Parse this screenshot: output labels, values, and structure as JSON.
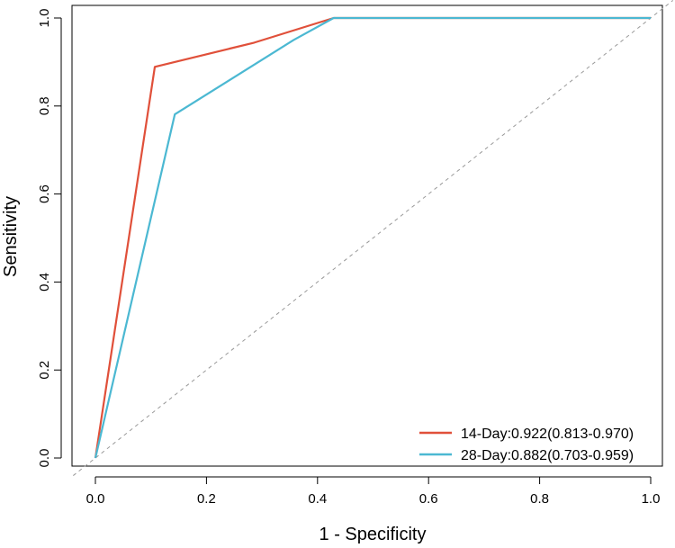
{
  "chart_data": {
    "type": "line",
    "title": "",
    "xlabel": "1 - Specificity",
    "ylabel": "Sensitivity",
    "xlim": [
      0,
      1
    ],
    "ylim": [
      0,
      1
    ],
    "x_ticks": [
      "0.0",
      "0.2",
      "0.4",
      "0.6",
      "0.8",
      "1.0"
    ],
    "y_ticks": [
      "0.0",
      "0.2",
      "0.4",
      "0.6",
      "0.8",
      "1.0"
    ],
    "grid": false,
    "legend_position": "bottom-right",
    "reference_line": {
      "name": "diagonal",
      "x": [
        0,
        1
      ],
      "y": [
        0,
        1
      ],
      "style": "dashed",
      "color": "#999999"
    },
    "series": [
      {
        "name": "14-Day:0.922(0.813-0.970)",
        "color": "#e0503a",
        "x": [
          0,
          0.107,
          0.286,
          0.429,
          1.0
        ],
        "y": [
          0,
          0.889,
          0.944,
          1.0,
          1.0
        ]
      },
      {
        "name": "28-Day:0.882(0.703-0.959)",
        "color": "#4bb8d2",
        "x": [
          0,
          0.143,
          0.357,
          0.429,
          1.0
        ],
        "y": [
          0,
          0.781,
          0.95,
          1.0,
          1.0
        ]
      }
    ]
  }
}
